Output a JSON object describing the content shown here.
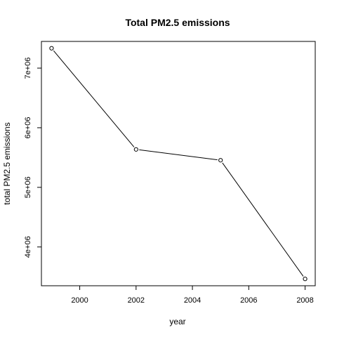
{
  "chart_data": {
    "type": "line",
    "title": "Total PM2.5 emissions",
    "xlabel": "year",
    "ylabel": "total PM2.5 emissions",
    "x": [
      1999,
      2002,
      2005,
      2008
    ],
    "values": [
      7332967,
      5635780,
      5454703,
      3464206
    ],
    "xlim": [
      1998.64,
      2008.36
    ],
    "ylim": [
      3349375,
      7447798
    ],
    "xticks": [
      2000,
      2002,
      2004,
      2006,
      2008
    ],
    "xtick_labels": [
      "2000",
      "2002",
      "2004",
      "2006",
      "2008"
    ],
    "yticks": [
      4000000,
      5000000,
      6000000,
      7000000
    ],
    "ytick_labels": [
      "4e+06",
      "5e+06",
      "6e+06",
      "7e+06"
    ],
    "grid": false,
    "marker": "open-circle",
    "line_color": "#000000"
  }
}
